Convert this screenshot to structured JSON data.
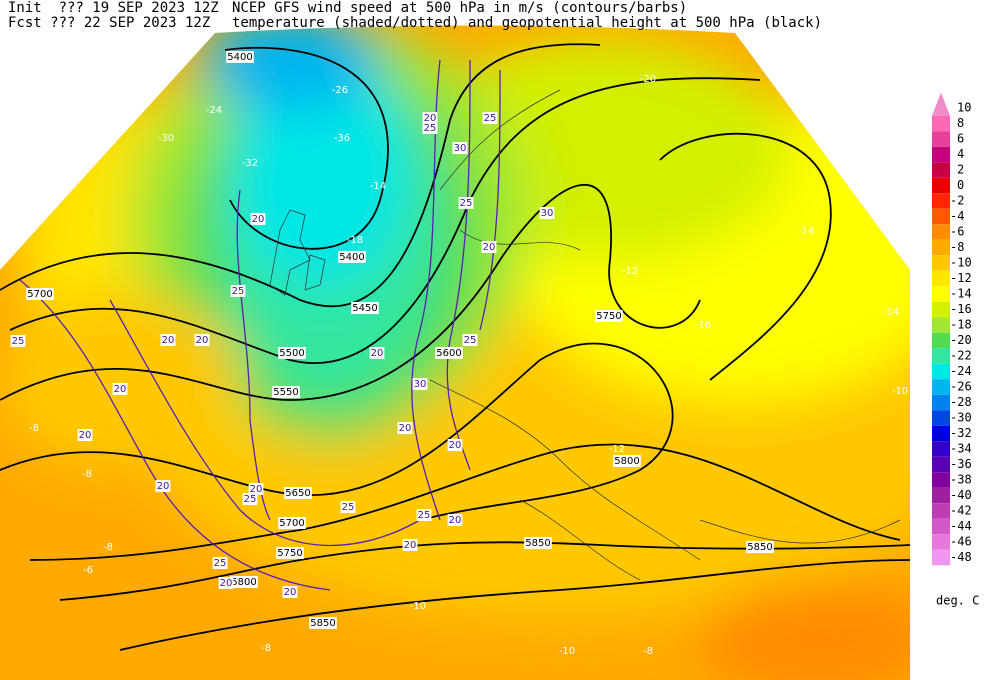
{
  "header": {
    "init": "Init  ??? 19 SEP 2023 12Z",
    "fcst": "Fcst ??? 22 SEP 2023 12Z",
    "title": "NCEP GFS wind speed at 500 hPa in m/s (contours/barbs)",
    "subtitle": "temperature (shaded/dotted) and geopotential height at 500 hPa (black)"
  },
  "map": {
    "height_labels": [
      5400,
      5400,
      5450,
      5500,
      5550,
      5650,
      5700,
      5750,
      5800,
      5850,
      5600,
      5700,
      5750,
      5800,
      5850,
      5850
    ],
    "temperature_labels": [
      -24,
      -26,
      -30,
      -32,
      -36,
      -14,
      -18,
      -14,
      -12,
      -14,
      -16,
      -10,
      -12,
      -8,
      -8,
      -6,
      -10,
      -8,
      -10,
      -8,
      -8,
      -20
    ],
    "wind_labels": [
      20,
      25,
      20,
      20,
      20,
      20,
      20,
      20,
      25,
      25,
      20,
      25,
      20,
      20,
      25,
      20,
      20,
      25,
      30,
      20,
      25,
      20,
      30,
      25,
      20,
      25,
      30,
      25,
      20
    ]
  },
  "colorbar": {
    "levels": [
      10,
      8,
      6,
      4,
      2,
      0,
      -2,
      -4,
      -6,
      -8,
      -10,
      -12,
      -14,
      -16,
      -18,
      -20,
      -22,
      -24,
      -26,
      -28,
      -30,
      -32,
      -34,
      -36,
      -38,
      -40,
      -42,
      -44,
      -46,
      -48
    ],
    "colors": [
      "#f08cc8",
      "#ff69b4",
      "#e8409a",
      "#c8007c",
      "#c80046",
      "#e60000",
      "#ff2800",
      "#ff5a00",
      "#ff8c00",
      "#ffaa00",
      "#ffc800",
      "#ffe600",
      "#ffff00",
      "#d2f000",
      "#a0e632",
      "#50dc50",
      "#32e6a0",
      "#00e6e6",
      "#00b4f0",
      "#0082f0",
      "#0046e6",
      "#0000dc",
      "#3200c8",
      "#5a00b4",
      "#8200a0",
      "#a01ea0",
      "#be3cb4",
      "#d25ac8",
      "#e678dc",
      "#f096f0"
    ],
    "unit": "deg. C"
  }
}
